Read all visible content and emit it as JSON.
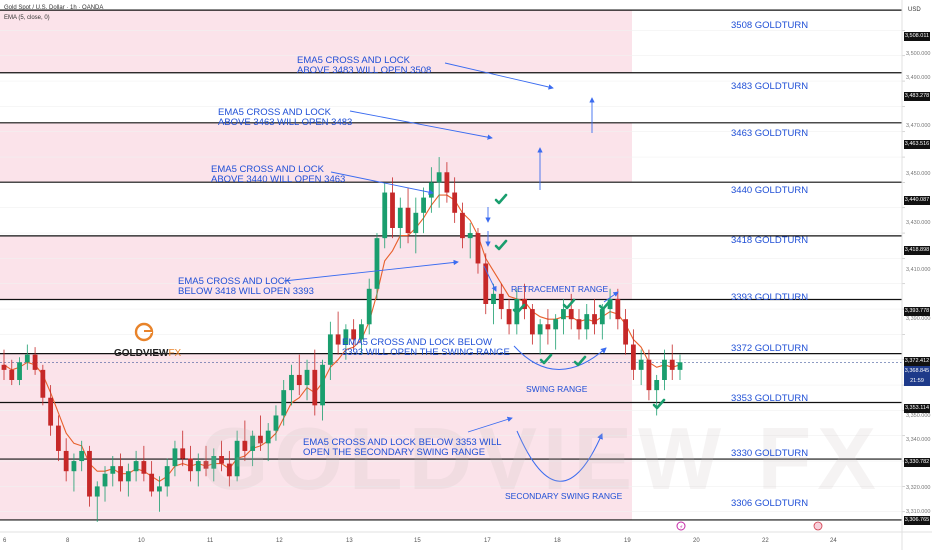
{
  "header": {
    "symbol": "Gold Spot / U.S. Dollar · 1h · OANDA",
    "indicator": "EMA (5, close, 0)",
    "currency": "USD"
  },
  "logo": {
    "name": "GOLDVIEW",
    "suffix": "FX",
    "watermark": "GOLDVIEW FX"
  },
  "colors": {
    "zone": "#fbe3ea",
    "line": "#111111",
    "text": "#1f4fd6",
    "up": "#1a9e6e",
    "down": "#c62828",
    "ema": "#e8602c"
  },
  "chart_data": {
    "type": "candlestick",
    "title": "Gold Spot / U.S. Dollar · 1h · OANDA",
    "ylim": [
      3302,
      3512
    ],
    "y_ticks": [
      3310,
      3320,
      3330,
      3340,
      3350,
      3360,
      3370,
      3380,
      3390,
      3400,
      3410,
      3420,
      3430,
      3440,
      3450,
      3460,
      3470,
      3480,
      3490,
      3500
    ],
    "y_tick_labels": [
      "3,310.000",
      "3,320.000",
      "3,330.000",
      "3,340.000",
      "3,350.000",
      "3,360.000",
      "3,370.000",
      "3,380.000",
      "3,390.000",
      "3,400.000",
      "3,410.000",
      "3,420.000",
      "3,430.000",
      "3,440.000",
      "3,450.000",
      "3,460.000",
      "3,470.000",
      "3,480.000",
      "3,490.000",
      "3,500.000"
    ],
    "x_ticks": [
      "6",
      "8",
      "10",
      "11",
      "12",
      "13",
      "15",
      "17",
      "18",
      "19",
      "20",
      "22",
      "24"
    ],
    "levels": [
      {
        "price": 3508.011,
        "label": "3508 GOLDTURN",
        "badge": "3,508.011"
      },
      {
        "price": 3483.278,
        "label": "3483 GOLDTURN",
        "badge": "3,483.278"
      },
      {
        "price": 3463.516,
        "label": "3463 GOLDTURN",
        "badge": "3,463.516"
      },
      {
        "price": 3440.087,
        "label": "3440 GOLDTURN",
        "badge": "3,440.087"
      },
      {
        "price": 3418.898,
        "label": "3418 GOLDTURN",
        "badge": "3,418.898"
      },
      {
        "price": 3393.778,
        "label": "3393 GOLDTURN",
        "badge": "3,393.778"
      },
      {
        "price": 3372.412,
        "label": "3372 GOLDTURN",
        "badge": "3,372.412"
      },
      {
        "price": 3353.114,
        "label": "3353 GOLDTURN",
        "badge": "3,353.114"
      },
      {
        "price": 3330.782,
        "label": "3330 GOLDTURN",
        "badge": "3,330.782"
      },
      {
        "price": 3306.765,
        "label": "3306 GOLDTURN",
        "badge": "3,306.765"
      }
    ],
    "current_price": {
      "value": 3368.845,
      "badge": "3,368.845",
      "countdown": "21:59"
    },
    "zones": [
      [
        3483.278,
        3508.011
      ],
      [
        3440.087,
        3463.516
      ],
      [
        3393.778,
        3418.898
      ],
      [
        3306.765,
        3372.412
      ]
    ],
    "annotations": [
      {
        "id": "a1",
        "lines": [
          "EMA5 CROSS AND LOCK",
          "ABOVE 3483 WILL OPEN 3508"
        ]
      },
      {
        "id": "a2",
        "lines": [
          "EMA5 CROSS AND LOCK",
          "ABOVE 3463 WILL OPEN 3483"
        ]
      },
      {
        "id": "a3",
        "lines": [
          "EMA5 CROSS AND LOCK",
          "ABOVE 3440 WILL OPEN 3463"
        ]
      },
      {
        "id": "a4",
        "lines": [
          "EMA5 CROSS AND LOCK",
          "BELOW 3418 WILL OPEN 3393"
        ]
      },
      {
        "id": "a5",
        "lines": [
          "EMA5 CROSS AND LOCK BELOW",
          "3393 WILL OPEN THE SWING RANGE"
        ]
      },
      {
        "id": "a6",
        "lines": [
          "EMA5 CROSS AND LOCK BELOW 3353 WILL",
          "OPEN THE SECONDARY SWING RANGE"
        ]
      }
    ],
    "range_labels": {
      "retracement": "RETRACEMENT RANGE",
      "swing": "SWING RANGE",
      "secondary": "SECONDARY SWING RANGE"
    },
    "candles": [
      [
        3368,
        3374,
        3362,
        3366
      ],
      [
        3366,
        3370,
        3360,
        3362
      ],
      [
        3362,
        3371,
        3360,
        3369
      ],
      [
        3369,
        3376,
        3366,
        3372
      ],
      [
        3372,
        3375,
        3364,
        3366
      ],
      [
        3366,
        3368,
        3352,
        3355
      ],
      [
        3355,
        3360,
        3340,
        3344
      ],
      [
        3344,
        3348,
        3330,
        3334
      ],
      [
        3334,
        3339,
        3322,
        3326
      ],
      [
        3326,
        3333,
        3318,
        3330
      ],
      [
        3330,
        3338,
        3326,
        3334
      ],
      [
        3334,
        3336,
        3312,
        3316
      ],
      [
        3316,
        3322,
        3306,
        3320
      ],
      [
        3320,
        3328,
        3314,
        3325
      ],
      [
        3325,
        3332,
        3320,
        3328
      ],
      [
        3328,
        3333,
        3318,
        3322
      ],
      [
        3322,
        3329,
        3316,
        3326
      ],
      [
        3326,
        3334,
        3322,
        3330
      ],
      [
        3330,
        3336,
        3322,
        3325
      ],
      [
        3325,
        3330,
        3316,
        3318
      ],
      [
        3318,
        3324,
        3310,
        3320
      ],
      [
        3320,
        3331,
        3316,
        3328
      ],
      [
        3328,
        3338,
        3324,
        3335
      ],
      [
        3335,
        3342,
        3328,
        3331
      ],
      [
        3331,
        3336,
        3322,
        3326
      ],
      [
        3326,
        3333,
        3320,
        3330
      ],
      [
        3330,
        3336,
        3324,
        3327
      ],
      [
        3327,
        3335,
        3322,
        3332
      ],
      [
        3332,
        3338,
        3326,
        3329
      ],
      [
        3329,
        3334,
        3320,
        3324
      ],
      [
        3324,
        3342,
        3322,
        3338
      ],
      [
        3338,
        3346,
        3330,
        3334
      ],
      [
        3334,
        3342,
        3328,
        3340
      ],
      [
        3340,
        3348,
        3334,
        3337
      ],
      [
        3337,
        3345,
        3330,
        3342
      ],
      [
        3342,
        3352,
        3338,
        3348
      ],
      [
        3348,
        3362,
        3344,
        3358
      ],
      [
        3358,
        3368,
        3352,
        3364
      ],
      [
        3364,
        3372,
        3356,
        3360
      ],
      [
        3360,
        3370,
        3354,
        3366
      ],
      [
        3366,
        3374,
        3348,
        3352
      ],
      [
        3352,
        3370,
        3346,
        3368
      ],
      [
        3368,
        3385,
        3362,
        3380
      ],
      [
        3380,
        3389,
        3372,
        3376
      ],
      [
        3376,
        3384,
        3370,
        3382
      ],
      [
        3382,
        3386,
        3374,
        3378
      ],
      [
        3378,
        3386,
        3372,
        3384
      ],
      [
        3384,
        3402,
        3380,
        3398
      ],
      [
        3398,
        3420,
        3394,
        3418
      ],
      [
        3418,
        3440,
        3414,
        3436
      ],
      [
        3436,
        3442,
        3418,
        3422
      ],
      [
        3422,
        3434,
        3414,
        3430
      ],
      [
        3430,
        3438,
        3416,
        3420
      ],
      [
        3420,
        3434,
        3412,
        3428
      ],
      [
        3428,
        3438,
        3420,
        3434
      ],
      [
        3434,
        3446,
        3428,
        3440
      ],
      [
        3440,
        3450,
        3430,
        3444
      ],
      [
        3444,
        3448,
        3432,
        3436
      ],
      [
        3436,
        3442,
        3424,
        3428
      ],
      [
        3428,
        3432,
        3414,
        3418
      ],
      [
        3418,
        3424,
        3410,
        3420
      ],
      [
        3420,
        3422,
        3404,
        3408
      ],
      [
        3408,
        3412,
        3388,
        3392
      ],
      [
        3392,
        3400,
        3384,
        3396
      ],
      [
        3396,
        3400,
        3386,
        3390
      ],
      [
        3390,
        3394,
        3380,
        3384
      ],
      [
        3384,
        3398,
        3380,
        3394
      ],
      [
        3394,
        3400,
        3386,
        3390
      ],
      [
        3390,
        3392,
        3376,
        3380
      ],
      [
        3380,
        3386,
        3372,
        3384
      ],
      [
        3384,
        3390,
        3376,
        3382
      ],
      [
        3382,
        3388,
        3374,
        3386
      ],
      [
        3386,
        3394,
        3380,
        3390
      ],
      [
        3390,
        3396,
        3382,
        3386
      ],
      [
        3386,
        3390,
        3378,
        3382
      ],
      [
        3382,
        3392,
        3378,
        3388
      ],
      [
        3388,
        3394,
        3380,
        3384
      ],
      [
        3384,
        3392,
        3378,
        3390
      ],
      [
        3390,
        3398,
        3386,
        3394
      ],
      [
        3394,
        3398,
        3382,
        3386
      ],
      [
        3386,
        3390,
        3372,
        3376
      ],
      [
        3376,
        3382,
        3362,
        3366
      ],
      [
        3366,
        3374,
        3360,
        3370
      ],
      [
        3370,
        3374,
        3354,
        3358
      ],
      [
        3358,
        3364,
        3348,
        3362
      ],
      [
        3362,
        3374,
        3358,
        3370
      ],
      [
        3370,
        3376,
        3362,
        3366
      ],
      [
        3366,
        3372,
        3362,
        3369
      ]
    ],
    "ema": [
      3368,
      3366,
      3367,
      3369,
      3368,
      3364,
      3357,
      3349,
      3341,
      3337,
      3336,
      3329,
      3326,
      3326,
      3327,
      3325,
      3325,
      3327,
      3326,
      3324,
      3322,
      3324,
      3328,
      3329,
      3328,
      3329,
      3328,
      3329,
      3329,
      3327,
      3331,
      3332,
      3335,
      3336,
      3338,
      3341,
      3347,
      3353,
      3355,
      3359,
      3357,
      3361,
      3367,
      3370,
      3374,
      3375,
      3378,
      3385,
      3396,
      3409,
      3413,
      3419,
      3419,
      3422,
      3426,
      3431,
      3435,
      3435,
      3433,
      3428,
      3425,
      3419,
      3410,
      3405,
      3400,
      3395,
      3394,
      3393,
      3389,
      3387,
      3386,
      3386,
      3387,
      3387,
      3385,
      3386,
      3385,
      3387,
      3389,
      3388,
      3384,
      3378,
      3375,
      3369,
      3367,
      3368,
      3367,
      3368
    ]
  }
}
